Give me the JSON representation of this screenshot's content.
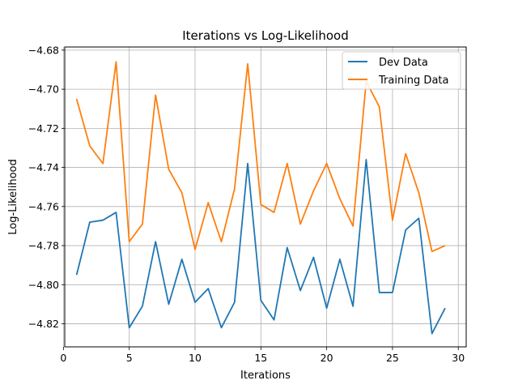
{
  "chart_data": {
    "type": "line",
    "title": "Iterations vs Log-Likelihood",
    "xlabel": "Iterations",
    "ylabel": "Log-Likelihood",
    "xlim": [
      0.1,
      30.6
    ],
    "ylim": [
      -4.8318,
      -4.6784
    ],
    "xticks": [
      0,
      5,
      10,
      15,
      20,
      25,
      30
    ],
    "yticks": [
      -4.82,
      -4.8,
      -4.78,
      -4.76,
      -4.74,
      -4.72,
      -4.7,
      -4.68
    ],
    "ytick_labels": [
      "−4.82",
      "−4.80",
      "−4.78",
      "−4.76",
      "−4.74",
      "−4.72",
      "−4.70",
      "−4.68"
    ],
    "grid": true,
    "legend_position": "top-right",
    "x": [
      1,
      2,
      3,
      4,
      5,
      6,
      7,
      8,
      9,
      10,
      11,
      12,
      13,
      14,
      15,
      16,
      17,
      18,
      19,
      20,
      21,
      22,
      23,
      24,
      25,
      26,
      27,
      28,
      29
    ],
    "series": [
      {
        "name": "Dev Data",
        "color": "#1f77b4",
        "values": [
          -4.795,
          -4.768,
          -4.767,
          -4.763,
          -4.822,
          -4.811,
          -4.778,
          -4.81,
          -4.787,
          -4.809,
          -4.802,
          -4.822,
          -4.809,
          -4.738,
          -4.808,
          -4.818,
          -4.781,
          -4.803,
          -4.786,
          -4.812,
          -4.787,
          -4.811,
          -4.736,
          -4.804,
          -4.804,
          -4.772,
          -4.766,
          -4.825,
          -4.812
        ]
      },
      {
        "name": "Training Data",
        "color": "#ff7f0e",
        "values": [
          -4.705,
          -4.729,
          -4.738,
          -4.686,
          -4.778,
          -4.769,
          -4.703,
          -4.741,
          -4.753,
          -4.782,
          -4.758,
          -4.778,
          -4.751,
          -4.687,
          -4.759,
          -4.763,
          -4.738,
          -4.769,
          -4.752,
          -4.738,
          -4.756,
          -4.77,
          -4.696,
          -4.709,
          -4.767,
          -4.733,
          -4.753,
          -4.783,
          -4.78
        ]
      }
    ]
  }
}
